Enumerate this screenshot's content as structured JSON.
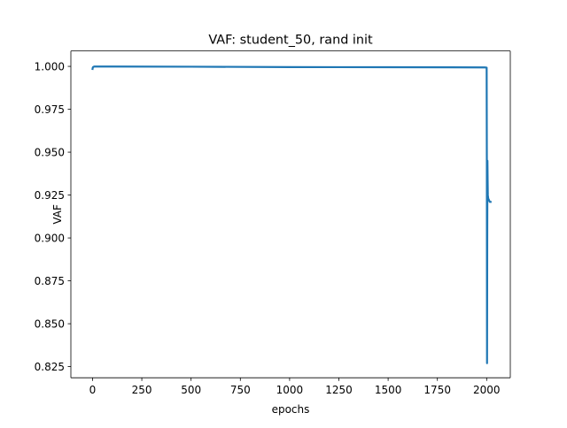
{
  "chart_data": {
    "type": "line",
    "title": "VAF: student_50, rand init",
    "xlabel": "epochs",
    "ylabel": "VAF",
    "xlim": [
      -110,
      2120
    ],
    "ylim": [
      0.8185,
      1.009
    ],
    "xticks": [
      0,
      250,
      500,
      750,
      1000,
      1250,
      1500,
      1750,
      2000
    ],
    "xtick_labels": [
      "0",
      "250",
      "500",
      "750",
      "1000",
      "1250",
      "1500",
      "1750",
      "2000"
    ],
    "yticks": [
      0.825,
      0.85,
      0.875,
      0.9,
      0.925,
      0.95,
      0.975,
      1.0
    ],
    "ytick_labels": [
      "0.825",
      "0.850",
      "0.875",
      "0.900",
      "0.925",
      "0.950",
      "0.975",
      "1.000"
    ],
    "grid": false,
    "legend": "none",
    "series": [
      {
        "color": "#1f77b4",
        "x": [
          0,
          1,
          3,
          6,
          10,
          30,
          100,
          500,
          1000,
          1500,
          1990,
          2000,
          2001,
          2002,
          2003,
          2004,
          2005,
          2006,
          2008,
          2012,
          2016,
          2020
        ],
        "y": [
          0.9985,
          0.9992,
          0.9996,
          0.9998,
          0.9999,
          0.9999,
          0.9999,
          0.9998,
          0.9996,
          0.9995,
          0.9994,
          0.9993,
          0.945,
          0.827,
          0.9,
          0.945,
          0.934,
          0.925,
          0.923,
          0.922,
          0.921,
          0.921
        ]
      }
    ]
  }
}
